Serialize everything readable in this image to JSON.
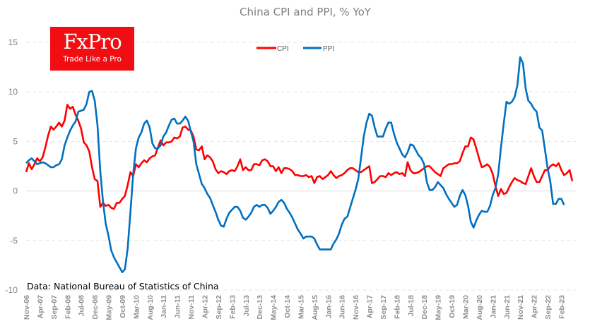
{
  "logo": {
    "name": "FxPro",
    "tagline": "Trade Like a Pro",
    "color": "#f20d12"
  },
  "source_note": "Data: National Bureau of Statistics of China",
  "chart_data": {
    "type": "line",
    "title": "China CPI and PPI, % YoY",
    "xlabel": "",
    "ylabel": "",
    "ylim": [
      -10,
      15
    ],
    "yticks": [
      15,
      10,
      5,
      0,
      -5,
      -10
    ],
    "grid": true,
    "legend": "top-center",
    "start_month": "Nov-06",
    "x_tick_labels": [
      "Nov-06",
      "Apr-07",
      "Sep-07",
      "Feb-08",
      "Jul-08",
      "Dec-08",
      "May-09",
      "Oct-09",
      "Mar-10",
      "Aug-10",
      "Jan-11",
      "Jun-11",
      "Nov-11",
      "Apr-12",
      "Sep-12",
      "Feb-13",
      "Jul-13",
      "Dec-13",
      "May-14",
      "Oct-14",
      "Mar-15",
      "Aug-15",
      "Jan-16",
      "Jun-16",
      "Nov-16",
      "Apr-17",
      "Sep-17",
      "Feb-18",
      "Jul-18",
      "Dec-18",
      "May-19",
      "Oct-19",
      "Mar-20",
      "Aug-20",
      "Jan-21",
      "Jun-21",
      "Nov-21",
      "Apr-22",
      "Sep-22",
      "Feb-23"
    ],
    "x_tick_step_months": 5,
    "series": [
      {
        "name": "CPI",
        "color": "#ff0000",
        "values": [
          1.9,
          2.8,
          2.2,
          2.7,
          3.3,
          3.0,
          3.4,
          4.4,
          5.6,
          6.5,
          6.2,
          6.5,
          6.9,
          6.5,
          7.1,
          8.7,
          8.3,
          8.5,
          7.7,
          7.1,
          6.3,
          4.9,
          4.6,
          4.0,
          2.4,
          1.2,
          1.0,
          -1.6,
          -1.2,
          -1.5,
          -1.4,
          -1.7,
          -1.8,
          -1.2,
          -1.2,
          -0.8,
          -0.5,
          0.6,
          1.9,
          1.5,
          2.7,
          2.4,
          2.8,
          3.1,
          2.9,
          3.3,
          3.5,
          3.6,
          4.4,
          5.1,
          4.6,
          4.9,
          4.9,
          5.0,
          5.4,
          5.3,
          5.5,
          6.4,
          6.5,
          6.2,
          6.1,
          5.5,
          4.2,
          4.1,
          4.5,
          3.2,
          3.6,
          3.4,
          3.0,
          2.2,
          1.8,
          2.0,
          1.9,
          1.7,
          2.0,
          2.1,
          2.0,
          2.5,
          3.2,
          2.1,
          2.4,
          2.1,
          2.1,
          2.7,
          2.7,
          2.6,
          3.1,
          3.2,
          3.0,
          2.5,
          2.5,
          2.0,
          2.4,
          1.8,
          2.3,
          2.3,
          2.2,
          2.0,
          1.6,
          1.6,
          1.5,
          1.5,
          1.6,
          1.4,
          1.5,
          0.8,
          1.4,
          1.5,
          1.2,
          1.4,
          1.6,
          2.0,
          1.6,
          1.3,
          1.5,
          1.6,
          1.8,
          2.1,
          2.3,
          2.3,
          2.1,
          1.9,
          1.9,
          2.1,
          2.3,
          2.5,
          0.8,
          0.9,
          1.2,
          1.5,
          1.5,
          1.4,
          1.8,
          1.6,
          1.8,
          1.9,
          1.7,
          1.8,
          1.5,
          2.9,
          2.1,
          1.8,
          1.8,
          1.9,
          2.1,
          2.3,
          2.5,
          2.5,
          2.2,
          1.9,
          1.7,
          1.5,
          2.3,
          2.5,
          2.7,
          2.7,
          2.8,
          2.8,
          3.0,
          3.8,
          4.5,
          4.5,
          5.4,
          5.2,
          4.3,
          3.3,
          2.4,
          2.5,
          2.7,
          2.4,
          1.7,
          0.5,
          -0.5,
          0.2,
          -0.3,
          -0.2,
          0.4,
          0.9,
          1.3,
          1.1,
          1.0,
          0.8,
          0.7,
          1.5,
          2.3,
          1.5,
          0.9,
          0.9,
          1.5,
          2.1,
          2.1,
          2.5,
          2.7,
          2.5,
          2.8,
          2.1,
          1.6,
          1.8,
          2.1,
          1.0
        ],
        "_note": "approximate monthly values read from chart"
      },
      {
        "name": "PPI",
        "color": "#0070c0",
        "values": [
          2.8,
          3.1,
          3.3,
          3.0,
          2.7,
          2.8,
          2.9,
          2.8,
          2.6,
          2.4,
          2.4,
          2.6,
          2.7,
          3.2,
          4.6,
          5.4,
          6.1,
          6.6,
          7.0,
          8.0,
          8.1,
          8.2,
          8.8,
          10.0,
          10.1,
          9.1,
          6.6,
          2.0,
          -1.1,
          -3.3,
          -4.5,
          -6.0,
          -6.7,
          -7.2,
          -7.7,
          -8.2,
          -7.9,
          -5.8,
          -2.1,
          1.7,
          4.3,
          5.4,
          5.9,
          6.8,
          7.1,
          6.4,
          4.8,
          4.3,
          4.3,
          4.6,
          5.5,
          5.9,
          6.6,
          7.2,
          7.3,
          6.8,
          6.8,
          7.1,
          7.5,
          7.1,
          6.0,
          5.0,
          2.7,
          1.7,
          0.7,
          0.3,
          -0.3,
          -0.7,
          -1.4,
          -2.1,
          -2.9,
          -3.5,
          -3.6,
          -2.8,
          -2.2,
          -1.9,
          -1.6,
          -1.6,
          -2.0,
          -2.7,
          -2.9,
          -2.6,
          -2.2,
          -1.6,
          -1.4,
          -1.6,
          -1.4,
          -1.4,
          -1.7,
          -2.3,
          -2.0,
          -1.6,
          -1.1,
          -0.9,
          -1.2,
          -1.8,
          -2.2,
          -2.7,
          -3.3,
          -3.9,
          -4.3,
          -4.8,
          -4.6,
          -4.6,
          -4.6,
          -4.8,
          -5.4,
          -5.9,
          -5.9,
          -5.9,
          -5.9,
          -5.9,
          -5.3,
          -4.9,
          -4.3,
          -3.4,
          -2.8,
          -2.6,
          -1.7,
          -0.8,
          0.1,
          1.2,
          3.3,
          5.5,
          6.9,
          7.8,
          7.6,
          6.4,
          5.5,
          5.5,
          5.5,
          6.3,
          6.9,
          6.9,
          5.8,
          4.9,
          4.3,
          3.7,
          3.4,
          3.9,
          4.7,
          4.6,
          4.1,
          3.6,
          3.3,
          2.7,
          0.9,
          0.1,
          0.1,
          0.4,
          0.9,
          0.6,
          0.3,
          -0.3,
          -0.8,
          -1.2,
          -1.6,
          -1.4,
          -0.5,
          0.1,
          -0.4,
          -1.5,
          -3.1,
          -3.7,
          -3.0,
          -2.4,
          -2.0,
          -2.1,
          -2.1,
          -1.5,
          -0.4,
          0.3,
          1.7,
          4.4,
          6.8,
          9.0,
          8.8,
          9.0,
          9.5,
          10.7,
          13.5,
          12.9,
          10.3,
          9.1,
          8.8,
          8.3,
          8.0,
          6.4,
          6.1,
          4.2,
          2.3,
          0.9,
          -1.3,
          -1.3,
          -0.8,
          -0.8,
          -1.4
        ],
        "_note": "approximate monthly values read from chart"
      }
    ]
  }
}
